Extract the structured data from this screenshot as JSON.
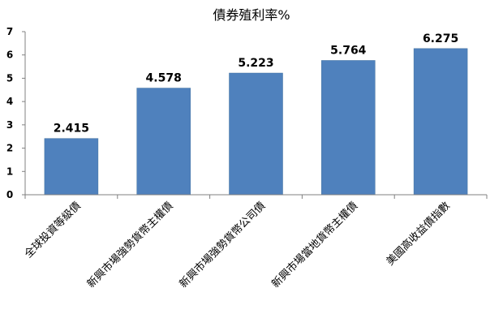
{
  "chart_data": {
    "type": "bar",
    "title": "債券殖利率%",
    "categories": [
      "全球投資等級債",
      "新興市場強勢貨幣主權債",
      "新興市場強勢貨幣公司債",
      "新興市場當地貨幣主權債",
      "美國高收益債指數"
    ],
    "values": [
      2.415,
      4.578,
      5.223,
      5.764,
      6.275
    ],
    "data_labels": [
      "2.415",
      "4.578",
      "5.223",
      "5.764",
      "6.275"
    ],
    "ylim": [
      0,
      7
    ],
    "yticks": [
      "0",
      "1",
      "2",
      "3",
      "4",
      "5",
      "6",
      "7"
    ],
    "xlabel": "",
    "ylabel": "",
    "grid": false,
    "legend": "none",
    "colors": {
      "bar": "#4f81bd",
      "bar_edge": "#41709e",
      "axis": "#808080"
    }
  }
}
